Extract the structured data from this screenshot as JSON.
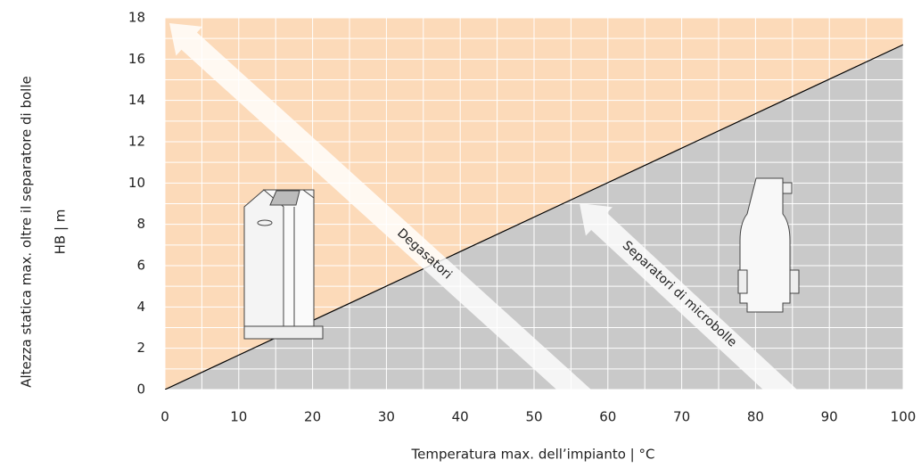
{
  "chart_data": {
    "type": "line",
    "x_label": "Temperatura max. dell’impianto | °C",
    "y_label": [
      "Altezza statica max. oltre il separatore di bolle",
      "HB | m"
    ],
    "x": [
      0,
      100
    ],
    "values": [
      0,
      16.7
    ],
    "color": "#000000",
    "above_color": "#fcdab9",
    "below_color": "#c9c9c9",
    "grid_color": "#ffffff",
    "xlim": [
      0,
      100
    ],
    "xticks": [
      0,
      10,
      20,
      30,
      40,
      50,
      60,
      70,
      80,
      90,
      100
    ],
    "ylim": [
      0,
      18
    ],
    "yticks": [
      0,
      2,
      4,
      6,
      8,
      10,
      12,
      14,
      16,
      18
    ],
    "grid": true,
    "annotations": [
      {
        "text": "Degasatori"
      },
      {
        "text": "Separatori di microbolle"
      }
    ]
  }
}
